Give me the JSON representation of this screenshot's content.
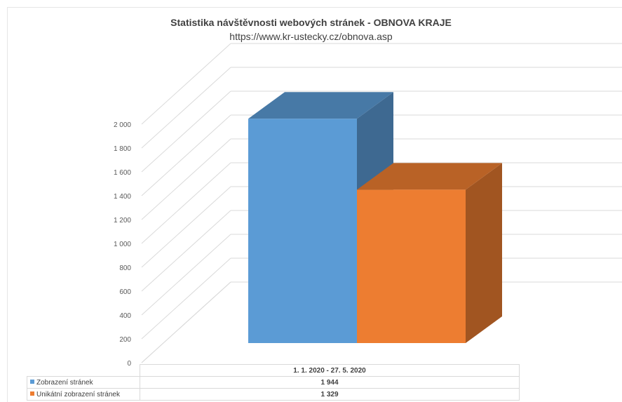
{
  "chart_data": {
    "type": "bar",
    "title": "Statistika návštěvnosti webových stránek - OBNOVA KRAJE",
    "subtitle": "https://www.kr-ustecky.cz/obnova.asp",
    "categories": [
      "1. 1. 2020 - 27. 5. 2020"
    ],
    "series": [
      {
        "name": "Zobrazení stránek",
        "values": [
          1944
        ],
        "color": "#5b9bd5"
      },
      {
        "name": "Unikátní zobrazení stránek",
        "values": [
          1329
        ],
        "color": "#ed7d31"
      }
    ],
    "value_labels": [
      "1 944",
      "1 329"
    ],
    "ylim": [
      0,
      2000
    ],
    "yticks": [
      0,
      200,
      400,
      600,
      800,
      1000,
      1200,
      1400,
      1600,
      1800,
      2000
    ],
    "ytick_labels": [
      "0",
      "200",
      "400",
      "600",
      "800",
      "1 000",
      "1 200",
      "1 400",
      "1 600",
      "1 800",
      "2 000"
    ],
    "grid": true,
    "style": "3d-column",
    "legend": "data-table"
  }
}
